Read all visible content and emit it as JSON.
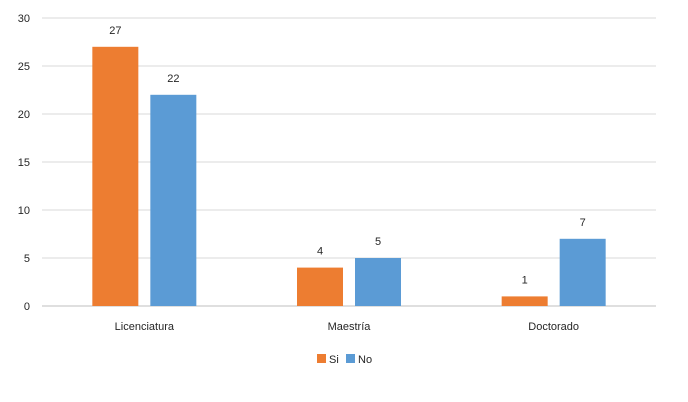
{
  "chart_data": {
    "type": "bar",
    "categories": [
      "Licenciatura",
      "Maestría",
      "Doctorado"
    ],
    "series": [
      {
        "name": "Si",
        "values": [
          27,
          4,
          1
        ],
        "color": "#ED7D31"
      },
      {
        "name": "No",
        "values": [
          22,
          5,
          7
        ],
        "color": "#5B9BD5"
      }
    ],
    "ylim": [
      0,
      30
    ],
    "yticks": [
      0,
      5,
      10,
      15,
      20,
      25,
      30
    ],
    "grid": true,
    "legend_position": "bottom",
    "data_labels": true
  }
}
